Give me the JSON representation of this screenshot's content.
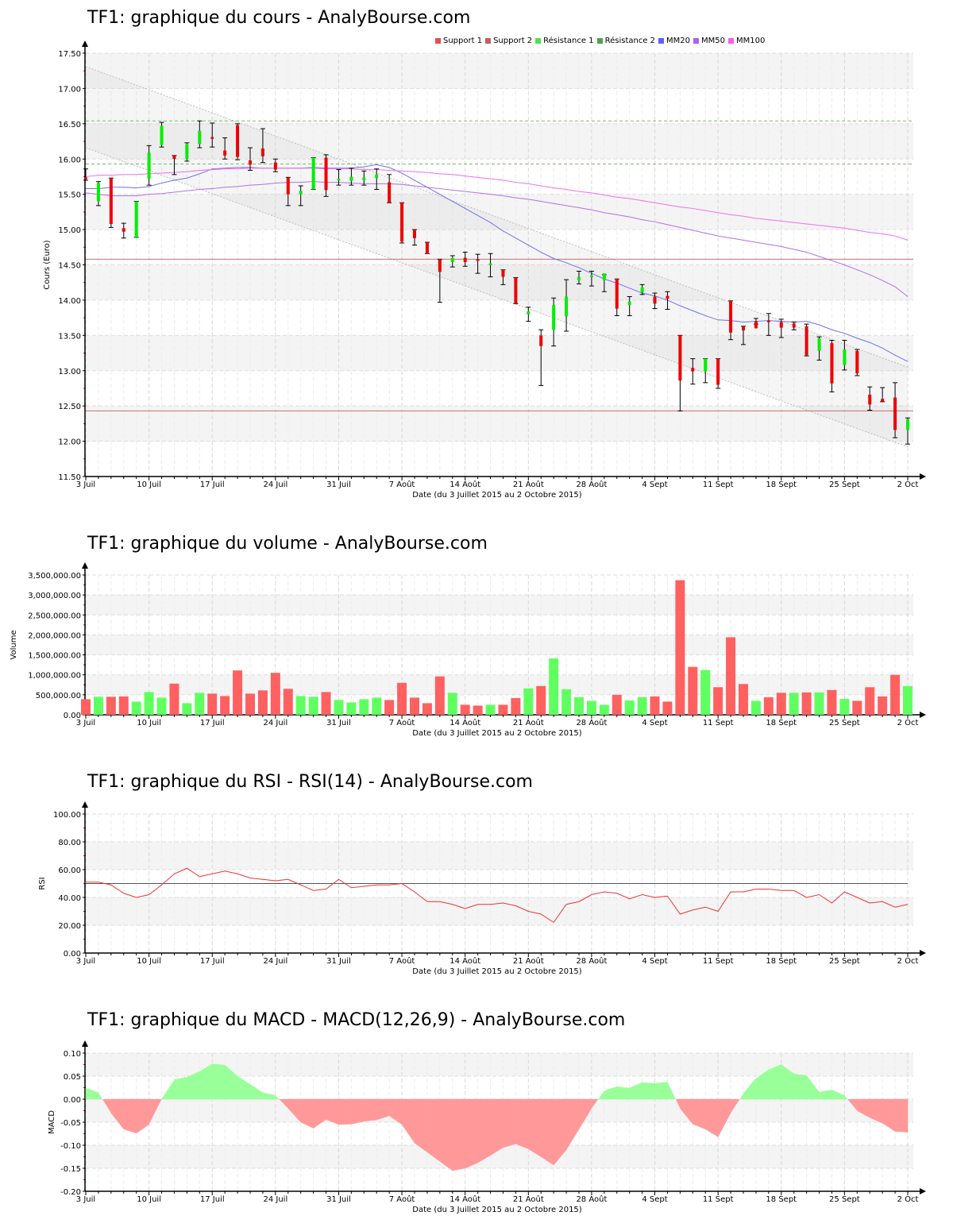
{
  "charts": {
    "price": {
      "title": "TF1: graphique du cours - AnalyBourse.com",
      "ylabel": "Cours (Euro)",
      "xlabel": "Date (du 3 Juillet 2015 au 2 Octobre 2015)"
    },
    "volume": {
      "title": "TF1: graphique du volume - AnalyBourse.com",
      "ylabel": "Volume",
      "xlabel": "Date (du 3 Juillet 2015 au 2 Octobre 2015)"
    },
    "rsi": {
      "title": "TF1: graphique du RSI - RSI(14) - AnalyBourse.com",
      "ylabel": "RSI",
      "xlabel": "Date (du 3 Juillet 2015 au 2 Octobre 2015)"
    },
    "macd": {
      "title": "TF1: graphique du MACD - MACD(12,26,9) - AnalyBourse.com",
      "ylabel": "MACD",
      "xlabel": "Date (du 3 Juillet 2015 au 2 Octobre 2015)"
    }
  },
  "legend": [
    {
      "label": "Support 1",
      "color": "#e05050"
    },
    {
      "label": "Support 2",
      "color": "#c06060"
    },
    {
      "label": "Résistance 1",
      "color": "#50e050"
    },
    {
      "label": "Résistance 2",
      "color": "#50a050"
    },
    {
      "label": "MM20",
      "color": "#6060ff"
    },
    {
      "label": "MM50",
      "color": "#b060f0"
    },
    {
      "label": "MM100",
      "color": "#f060f0"
    }
  ],
  "colors": {
    "up": "#00ee00",
    "down": "#ee0000",
    "vol_up": "#60ff60",
    "vol_down": "#ff6060",
    "macd_pos": "#99ff99",
    "macd_neg": "#ff9999",
    "rsi": "#ee3333"
  },
  "chart_data": [
    {
      "type": "candlestick",
      "title": "TF1: graphique du cours - AnalyBourse.com",
      "xlabel": "Date (du 3 Juillet 2015 au 2 Octobre 2015)",
      "ylabel": "Cours (Euro)",
      "ylim": [
        11.5,
        17.5
      ],
      "yticks": [
        "11.50",
        "12.00",
        "12.50",
        "13.00",
        "13.50",
        "14.00",
        "14.50",
        "15.00",
        "15.50",
        "16.00",
        "16.50",
        "17.00",
        "17.50"
      ],
      "xticks": [
        "3 Juil",
        "10 Juil",
        "17 Juil",
        "24 Juil",
        "31 Juil",
        "7 Août",
        "14 Août",
        "21 Août",
        "28 Août",
        "4 Sept",
        "11 Sept",
        "18 Sept",
        "25 Sept",
        "2 Oct"
      ],
      "support_1": 14.58,
      "support_2": 12.43,
      "resistance_1": 16.54,
      "resistance_2": 15.93,
      "candles": [
        [
          15.74,
          15.86,
          15.7,
          15.72
        ],
        [
          15.4,
          15.68,
          15.34,
          15.66
        ],
        [
          15.73,
          15.73,
          15.03,
          15.08
        ],
        [
          15.02,
          15.09,
          14.88,
          14.97
        ],
        [
          14.89,
          15.4,
          14.89,
          15.4
        ],
        [
          15.72,
          16.19,
          15.63,
          16.09
        ],
        [
          16.2,
          16.52,
          16.17,
          16.47
        ],
        [
          16.05,
          16.05,
          15.78,
          16.0
        ],
        [
          16.0,
          16.23,
          15.97,
          16.21
        ],
        [
          16.21,
          16.54,
          16.16,
          16.4
        ],
        [
          16.31,
          16.51,
          16.17,
          16.29
        ],
        [
          16.12,
          16.3,
          16.0,
          16.05
        ],
        [
          16.48,
          16.5,
          15.99,
          16.03
        ],
        [
          15.98,
          16.16,
          15.84,
          15.92
        ],
        [
          16.15,
          16.43,
          15.95,
          16.04
        ],
        [
          15.95,
          16.0,
          15.82,
          15.85
        ],
        [
          15.74,
          15.74,
          15.34,
          15.5
        ],
        [
          15.5,
          15.62,
          15.34,
          15.55
        ],
        [
          15.57,
          16.02,
          15.57,
          16.02
        ],
        [
          16.02,
          16.06,
          15.47,
          15.56
        ],
        [
          15.71,
          15.85,
          15.63,
          15.72
        ],
        [
          15.69,
          15.87,
          15.63,
          15.75
        ],
        [
          15.7,
          15.83,
          15.63,
          15.74
        ],
        [
          15.73,
          15.86,
          15.57,
          15.78
        ],
        [
          15.67,
          15.78,
          15.38,
          15.38
        ],
        [
          15.38,
          15.38,
          14.81,
          14.83
        ],
        [
          15.0,
          15.0,
          14.78,
          14.88
        ],
        [
          14.82,
          14.82,
          14.66,
          14.66
        ],
        [
          14.58,
          14.58,
          13.97,
          14.4
        ],
        [
          14.54,
          14.63,
          14.47,
          14.6
        ],
        [
          14.6,
          14.68,
          14.48,
          14.54
        ],
        [
          14.58,
          14.65,
          14.38,
          14.56
        ],
        [
          14.5,
          14.66,
          14.33,
          14.52
        ],
        [
          14.43,
          14.43,
          14.22,
          14.33
        ],
        [
          14.32,
          14.32,
          13.95,
          13.95
        ],
        [
          13.8,
          13.9,
          13.7,
          13.84
        ],
        [
          13.5,
          13.58,
          12.79,
          13.35
        ],
        [
          13.58,
          14.03,
          13.35,
          13.93
        ],
        [
          13.77,
          14.29,
          13.56,
          14.05
        ],
        [
          14.28,
          14.41,
          14.23,
          14.33
        ],
        [
          14.33,
          14.41,
          14.2,
          14.35
        ],
        [
          14.28,
          14.36,
          14.12,
          14.38
        ],
        [
          14.3,
          14.3,
          13.78,
          13.88
        ],
        [
          13.93,
          14.05,
          13.78,
          13.98
        ],
        [
          14.11,
          14.22,
          14.08,
          14.18
        ],
        [
          14.05,
          14.1,
          13.88,
          13.95
        ],
        [
          14.06,
          14.12,
          13.87,
          14.02
        ],
        [
          13.5,
          13.5,
          12.43,
          12.86
        ],
        [
          13.04,
          13.17,
          12.81,
          12.99
        ],
        [
          12.99,
          13.17,
          12.83,
          13.17
        ],
        [
          13.17,
          13.17,
          12.75,
          12.8
        ],
        [
          13.99,
          13.99,
          13.44,
          13.54
        ],
        [
          13.63,
          13.63,
          13.37,
          13.57
        ],
        [
          13.7,
          13.74,
          13.66,
          13.6
        ],
        [
          13.71,
          13.81,
          13.5,
          13.7
        ],
        [
          13.69,
          13.73,
          13.47,
          13.61
        ],
        [
          13.67,
          13.69,
          13.58,
          13.61
        ],
        [
          13.63,
          13.66,
          13.21,
          13.22
        ],
        [
          13.28,
          13.48,
          13.15,
          13.46
        ],
        [
          13.39,
          13.43,
          12.7,
          12.82
        ],
        [
          13.08,
          13.43,
          13.01,
          13.3
        ],
        [
          13.28,
          13.3,
          12.93,
          12.96
        ],
        [
          12.66,
          12.77,
          12.44,
          12.52
        ],
        [
          12.6,
          12.76,
          12.56,
          12.56
        ],
        [
          12.62,
          12.83,
          12.05,
          12.16
        ],
        [
          12.16,
          12.33,
          11.96,
          12.31
        ]
      ],
      "series": [
        {
          "name": "MM20",
          "values": [
            15.58,
            15.58,
            15.6,
            15.6,
            15.59,
            15.61,
            15.66,
            15.7,
            15.73,
            15.79,
            15.86,
            15.87,
            15.88,
            15.88,
            15.87,
            15.87,
            15.87,
            15.87,
            15.88,
            15.87,
            15.87,
            15.87,
            15.89,
            15.92,
            15.88,
            15.8,
            15.7,
            15.6,
            15.5,
            15.4,
            15.3,
            15.2,
            15.1,
            14.98,
            14.88,
            14.78,
            14.68,
            14.59,
            14.53,
            14.46,
            14.38,
            14.3,
            14.24,
            14.17,
            14.1,
            14.06,
            14.0,
            13.92,
            13.85,
            13.78,
            13.72,
            13.71,
            13.69,
            13.7,
            13.71,
            13.7,
            13.69,
            13.7,
            13.65,
            13.58,
            13.53,
            13.46,
            13.4,
            13.32,
            13.22,
            13.13
          ]
        },
        {
          "name": "MM50",
          "values": [
            15.52,
            15.5,
            15.48,
            15.48,
            15.48,
            15.5,
            15.51,
            15.53,
            15.55,
            15.57,
            15.58,
            15.6,
            15.61,
            15.63,
            15.64,
            15.66,
            15.67,
            15.67,
            15.68,
            15.67,
            15.67,
            15.66,
            15.65,
            15.65,
            15.65,
            15.64,
            15.62,
            15.6,
            15.58,
            15.56,
            15.54,
            15.52,
            15.5,
            15.48,
            15.45,
            15.43,
            15.4,
            15.37,
            15.34,
            15.31,
            15.28,
            15.24,
            15.21,
            15.18,
            15.14,
            15.11,
            15.07,
            15.03,
            14.99,
            14.95,
            14.91,
            14.88,
            14.85,
            14.82,
            14.79,
            14.76,
            14.72,
            14.68,
            14.62,
            14.56,
            14.5,
            14.43,
            14.36,
            14.28,
            14.19,
            14.05
          ]
        },
        {
          "name": "MM100",
          "values": [
            15.75,
            15.77,
            15.77,
            15.78,
            15.78,
            15.79,
            15.8,
            15.81,
            15.82,
            15.84,
            15.85,
            15.86,
            15.86,
            15.87,
            15.87,
            15.87,
            15.87,
            15.87,
            15.87,
            15.86,
            15.86,
            15.86,
            15.85,
            15.85,
            15.84,
            15.83,
            15.82,
            15.81,
            15.79,
            15.78,
            15.76,
            15.74,
            15.72,
            15.7,
            15.67,
            15.65,
            15.62,
            15.59,
            15.57,
            15.54,
            15.52,
            15.49,
            15.46,
            15.44,
            15.41,
            15.38,
            15.35,
            15.32,
            15.3,
            15.27,
            15.24,
            15.21,
            15.19,
            15.16,
            15.14,
            15.12,
            15.1,
            15.08,
            15.06,
            15.04,
            15.02,
            14.99,
            14.96,
            14.94,
            14.91,
            14.85
          ]
        }
      ],
      "channel": {
        "upper_start": 17.31,
        "upper_end": 13.05,
        "lower_start": 16.16,
        "lower_end": 11.92
      }
    },
    {
      "type": "bar",
      "title": "TF1: graphique du volume - AnalyBourse.com",
      "xlabel": "Date (du 3 Juillet 2015 au 2 Octobre 2015)",
      "ylabel": "Volume",
      "ylim": [
        0,
        3500000
      ],
      "yticks": [
        "0.00",
        "500,000.00",
        "1,000,000.00",
        "1,500,000.00",
        "2,000,000.00",
        "2,500,000.00",
        "3,000,000.00",
        "3,500,000.00"
      ],
      "xticks": [
        "3 Juil",
        "10 Juil",
        "17 Juil",
        "24 Juil",
        "31 Juil",
        "7 Août",
        "14 Août",
        "21 Août",
        "28 Août",
        "4 Sept",
        "11 Sept",
        "18 Sept",
        "25 Sept",
        "2 Oct"
      ],
      "values": [
        390000,
        450000,
        450000,
        460000,
        330000,
        570000,
        430000,
        780000,
        290000,
        550000,
        530000,
        470000,
        1110000,
        530000,
        610000,
        1050000,
        650000,
        470000,
        450000,
        570000,
        370000,
        310000,
        390000,
        430000,
        370000,
        800000,
        430000,
        290000,
        960000,
        550000,
        250000,
        230000,
        250000,
        250000,
        420000,
        660000,
        720000,
        1410000,
        640000,
        440000,
        350000,
        250000,
        500000,
        360000,
        440000,
        460000,
        330000,
        3370000,
        1200000,
        1120000,
        690000,
        1940000,
        770000,
        350000,
        440000,
        550000,
        550000,
        560000,
        560000,
        620000,
        400000,
        350000,
        690000,
        460000,
        1000000,
        720000
      ],
      "direction": [
        "down",
        "up",
        "down",
        "down",
        "up",
        "up",
        "up",
        "down",
        "up",
        "up",
        "down",
        "down",
        "down",
        "down",
        "down",
        "down",
        "down",
        "up",
        "up",
        "down",
        "up",
        "up",
        "up",
        "up",
        "down",
        "down",
        "down",
        "down",
        "down",
        "up",
        "down",
        "down",
        "up",
        "down",
        "down",
        "up",
        "down",
        "up",
        "up",
        "up",
        "up",
        "up",
        "down",
        "up",
        "up",
        "down",
        "down",
        "down",
        "down",
        "up",
        "down",
        "down",
        "down",
        "up",
        "down",
        "red",
        "up",
        "down",
        "up",
        "down",
        "up",
        "down",
        "down",
        "down",
        "down",
        "up"
      ]
    },
    {
      "type": "line",
      "title": "TF1: graphique du RSI - RSI(14) - AnalyBourse.com",
      "xlabel": "Date (du 3 Juillet 2015 au 2 Octobre 2015)",
      "ylabel": "RSI",
      "ylim": [
        0,
        100
      ],
      "yticks": [
        "0.00",
        "20.00",
        "40.00",
        "60.00",
        "80.00",
        "100.00"
      ],
      "reference_line": 50,
      "xticks": [
        "3 Juil",
        "10 Juil",
        "17 Juil",
        "24 Juil",
        "31 Juil",
        "7 Août",
        "14 Août",
        "21 Août",
        "28 Août",
        "4 Sept",
        "11 Sept",
        "18 Sept",
        "25 Sept",
        "2 Oct"
      ],
      "values": [
        51,
        51,
        49,
        43,
        40,
        42,
        49,
        57,
        61,
        55,
        57,
        59,
        57,
        54,
        53,
        52,
        53,
        49,
        45,
        46,
        53,
        47,
        48,
        49,
        49,
        50,
        44,
        37,
        37,
        35,
        32,
        35,
        35,
        36,
        34,
        30,
        28,
        22,
        35,
        37,
        42,
        44,
        43,
        39,
        42,
        40,
        41,
        28,
        31,
        33,
        30,
        44,
        44,
        46,
        46,
        45,
        45,
        40,
        42,
        36,
        44,
        40,
        36,
        37,
        33,
        35
      ]
    },
    {
      "type": "area",
      "title": "TF1: graphique du MACD - MACD(12,26,9) - AnalyBourse.com",
      "xlabel": "Date (du 3 Juillet 2015 au 2 Octobre 2015)",
      "ylabel": "MACD",
      "ylim": [
        -0.2,
        0.1
      ],
      "yticks": [
        "-0.20",
        "-0.15",
        "-0.10",
        "-0.05",
        "0.00",
        "0.05",
        "0.10"
      ],
      "xticks": [
        "3 Juil",
        "10 Juil",
        "17 Juil",
        "24 Juil",
        "31 Juil",
        "7 Août",
        "14 Août",
        "21 Août",
        "28 Août",
        "4 Sept",
        "11 Sept",
        "18 Sept",
        "25 Sept",
        "2 Oct"
      ],
      "values": [
        0.024,
        0.014,
        -0.03,
        -0.065,
        -0.074,
        -0.055,
        0.0,
        0.042,
        0.048,
        0.06,
        0.076,
        0.074,
        0.05,
        0.032,
        0.014,
        0.008,
        -0.02,
        -0.05,
        -0.063,
        -0.044,
        -0.055,
        -0.054,
        -0.048,
        -0.045,
        -0.036,
        -0.055,
        -0.095,
        -0.115,
        -0.135,
        -0.155,
        -0.15,
        -0.138,
        -0.122,
        -0.105,
        -0.097,
        -0.108,
        -0.125,
        -0.143,
        -0.11,
        -0.065,
        -0.02,
        0.018,
        0.027,
        0.024,
        0.036,
        0.034,
        0.037,
        -0.02,
        -0.054,
        -0.065,
        -0.082,
        -0.03,
        0.012,
        0.045,
        0.064,
        0.075,
        0.055,
        0.051,
        0.015,
        0.02,
        0.008,
        -0.025,
        -0.04,
        -0.052,
        -0.07,
        -0.072
      ]
    }
  ]
}
